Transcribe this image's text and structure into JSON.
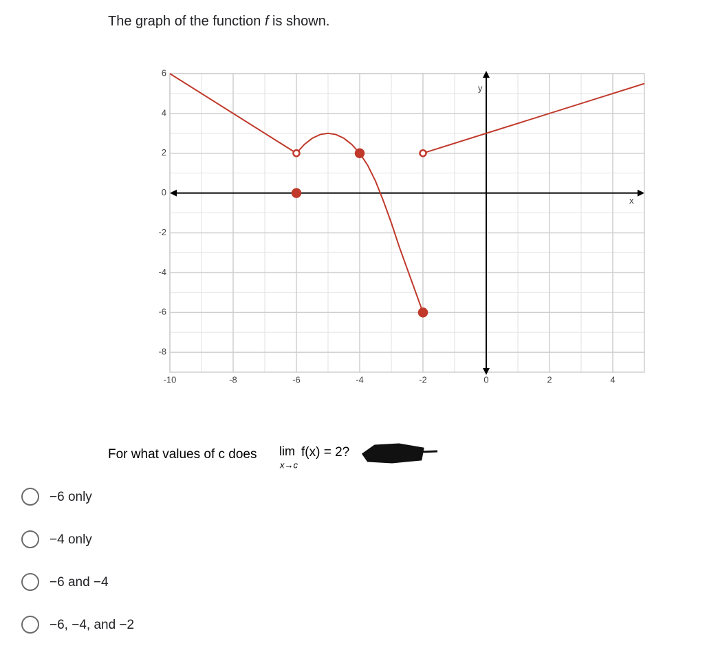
{
  "intro": {
    "before": "The graph of the function ",
    "fn": "f",
    "after": " is shown."
  },
  "graph": {
    "xlim": [
      -10,
      5
    ],
    "ylim": [
      -9,
      6
    ],
    "xticks": [
      -10,
      -8,
      -6,
      -4,
      -2,
      0,
      2,
      4
    ],
    "yticks": [
      6,
      4,
      2,
      0,
      -2,
      -4,
      -6,
      -8
    ],
    "x_label": "x",
    "y_label": "y",
    "color": "#c0392b",
    "pieces": [
      {
        "x": [
          -10,
          -6
        ],
        "y": [
          6,
          2
        ]
      },
      {
        "x": [
          -6,
          -5.75,
          -5.5,
          -5.25,
          -5,
          -4.75,
          -4.5,
          -4.25,
          -4
        ],
        "y": [
          2,
          2.44,
          2.75,
          2.94,
          3,
          2.94,
          2.75,
          2.44,
          2
        ]
      },
      {
        "x": [
          -4,
          -3.75,
          -3.5,
          -3.25,
          -3,
          -2.75,
          -2.5,
          -2.25,
          -2
        ],
        "y": [
          2,
          1.4,
          0.6,
          -0.4,
          -1.5,
          -2.7,
          -3.8,
          -4.9,
          -6
        ]
      },
      {
        "x": [
          -2,
          5
        ],
        "y": [
          2,
          5.5
        ]
      }
    ],
    "points": [
      {
        "x": -6,
        "y": 2,
        "open": true
      },
      {
        "x": -6,
        "y": 0,
        "open": false
      },
      {
        "x": -4,
        "y": 2,
        "open": false
      },
      {
        "x": -2,
        "y": 2,
        "open": true
      },
      {
        "x": -2,
        "y": -6,
        "open": false
      }
    ]
  },
  "question": {
    "before": "For what values of c does ",
    "lim": "lim",
    "sub": "x→c",
    "expr": "f(x) = 2?"
  },
  "options": [
    "−6 only",
    "−4 only",
    "−6 and −4",
    "−6, −4, and −2"
  ]
}
